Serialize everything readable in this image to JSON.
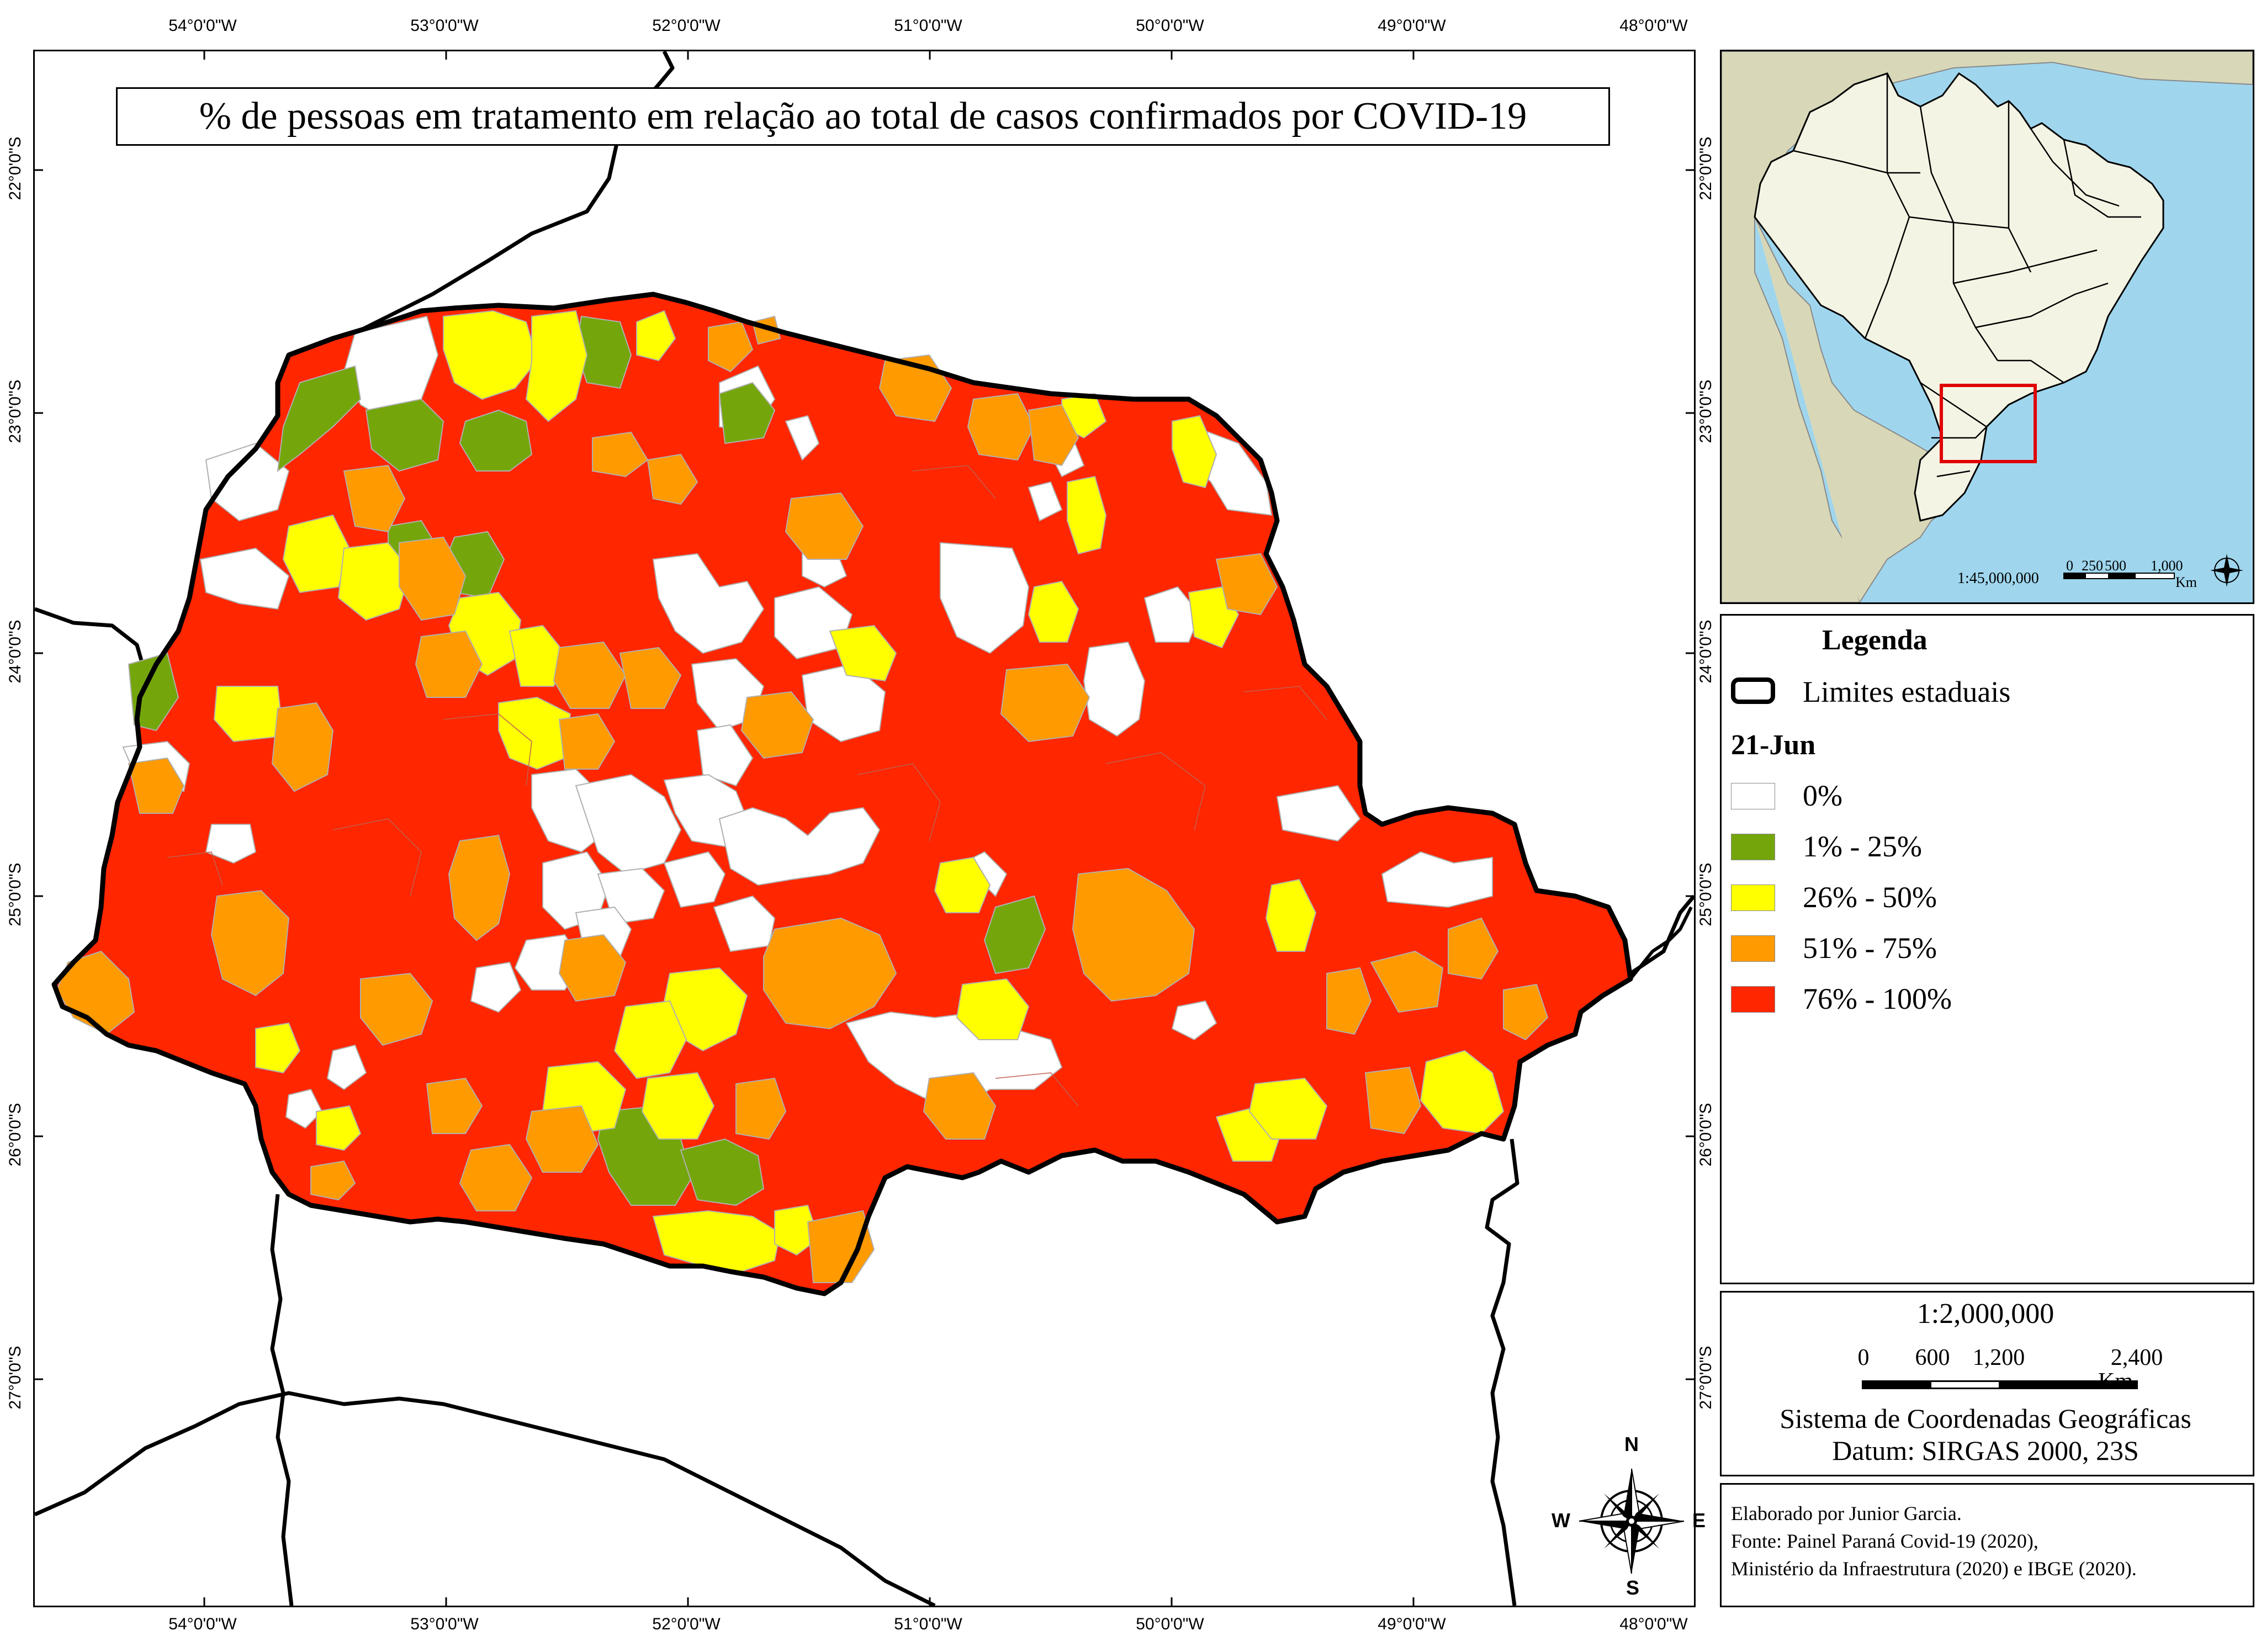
{
  "title": "% de pessoas em tratamento em relação ao total de casos confirmados por COVID-19",
  "coords": {
    "top": [
      "54°0'0\"W",
      "53°0'0\"W",
      "52°0'0\"W",
      "51°0'0\"W",
      "50°0'0\"W",
      "49°0'0\"W",
      "48°0'0\"W"
    ],
    "bottom": [
      "54°0'0\"W",
      "53°0'0\"W",
      "52°0'0\"W",
      "51°0'0\"W",
      "50°0'0\"W",
      "49°0'0\"W",
      "48°0'0\"W"
    ],
    "left": [
      "22°0'0\"S",
      "23°0'0\"S",
      "24°0'0\"S",
      "25°0'0\"S",
      "26°0'0\"S",
      "27°0'0\"S"
    ],
    "right": [
      "22°0'0\"S",
      "23°0'0\"S",
      "24°0'0\"S",
      "25°0'0\"S",
      "26°0'0\"S",
      "27°0'0\"S"
    ]
  },
  "inset": {
    "scale": "1:45,000,000",
    "scale_ticks": [
      "0",
      "250",
      "500",
      "1,000"
    ],
    "unit": "Km"
  },
  "legend": {
    "title": "Legenda",
    "limits_label": "Limites estaduais",
    "date": "21-Jun",
    "classes": [
      {
        "label": "0%",
        "color": "#ffffff"
      },
      {
        "label": "1% - 25%",
        "color": "#74a60c"
      },
      {
        "label": "26% - 50%",
        "color": "#ffff00"
      },
      {
        "label": "51% - 75%",
        "color": "#ff9a00"
      },
      {
        "label": "76% - 100%",
        "color": "#ff2600"
      }
    ]
  },
  "scale": {
    "ratio": "1:2,000,000",
    "ticks": [
      "0",
      "600",
      "1,200",
      "2,400"
    ],
    "unit": "Km",
    "crs_line1": "Sistema de Coordenadas Geográficas",
    "crs_line2": "Datum: SIRGAS 2000, 23S"
  },
  "credits": [
    "Elaborado por Junior Garcia.",
    "Fonte: Painel Paraná Covid-19 (2020),",
    "Ministério da Infraestrutura (2020) e IBGE (2020)."
  ],
  "compass": {
    "n": "N",
    "s": "S",
    "e": "E",
    "w": "W"
  },
  "colors": {
    "ocean": "#9fd6ee",
    "land_other": "#d8d8b8",
    "brazil": "#f4f4e4",
    "highlight": "#e00000"
  }
}
